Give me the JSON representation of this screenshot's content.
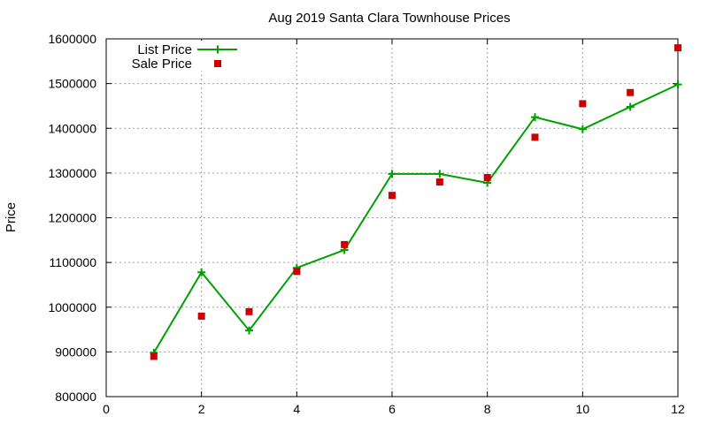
{
  "chart_data": {
    "type": "line",
    "title": "Aug 2019 Santa Clara Townhouse Prices",
    "xlabel": "",
    "ylabel": "Price",
    "xlim": [
      0,
      12
    ],
    "ylim": [
      800000,
      1600000
    ],
    "x_ticks": [
      0,
      2,
      4,
      6,
      8,
      10,
      12
    ],
    "y_ticks": [
      800000,
      900000,
      1000000,
      1100000,
      1200000,
      1300000,
      1400000,
      1500000,
      1600000
    ],
    "grid": true,
    "legend_position": "top-left",
    "series": [
      {
        "name": "List Price",
        "style": "line-plus",
        "color": "#00a000",
        "x": [
          1,
          2,
          3,
          4,
          5,
          6,
          7,
          8,
          9,
          10,
          11,
          12
        ],
        "y": [
          898000,
          1078000,
          948000,
          1088000,
          1128000,
          1298000,
          1298000,
          1278000,
          1425000,
          1398000,
          1448000,
          1498000
        ]
      },
      {
        "name": "Sale Price",
        "style": "square-points",
        "color": "#cc0000",
        "x": [
          1,
          2,
          3,
          4,
          5,
          6,
          7,
          8,
          9,
          10,
          11,
          12
        ],
        "y": [
          890000,
          980000,
          990000,
          1080000,
          1140000,
          1250000,
          1280000,
          1290000,
          1380000,
          1455000,
          1480000,
          1580000
        ]
      }
    ]
  }
}
